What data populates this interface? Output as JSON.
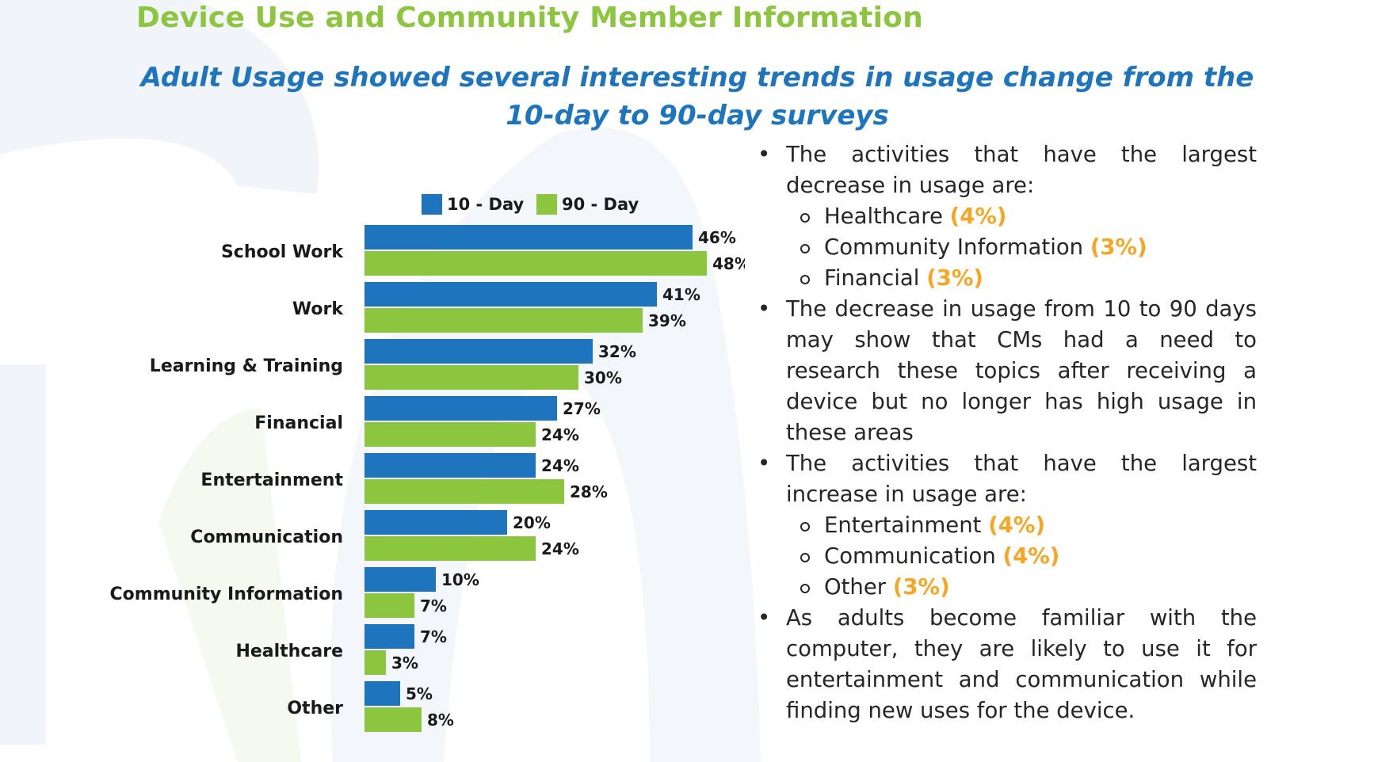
{
  "page": {
    "title": "Device Use and Community Member Information",
    "subtitle": "Adult Usage showed several interesting trends in usage change from the 10-day to 90-day surveys"
  },
  "colors": {
    "title_green": "#8cc63f",
    "subtitle_blue": "#1f75bd",
    "series_10_day": "#1f75bd",
    "series_90_day": "#8cc63f",
    "highlight_orange": "#f5a623"
  },
  "chart_data": {
    "type": "bar",
    "orientation": "horizontal",
    "categories": [
      "School Work",
      "Work",
      "Learning & Training",
      "Financial",
      "Entertainment",
      "Communication",
      "Community Information",
      "Healthcare",
      "Other"
    ],
    "series": [
      {
        "name": "10 - Day",
        "values": [
          46,
          41,
          32,
          27,
          24,
          20,
          10,
          7,
          5
        ]
      },
      {
        "name": "90 - Day",
        "values": [
          48,
          39,
          30,
          24,
          28,
          24,
          7,
          3,
          8
        ]
      }
    ],
    "value_suffix": "%",
    "xlim": [
      0,
      50
    ],
    "legend_position": "top",
    "grid": false
  },
  "bullets": [
    {
      "text": "The activities that have the largest decrease in usage are:",
      "subitems": [
        {
          "label": "Healthcare",
          "value": "(4%)"
        },
        {
          "label": "Community Information",
          "value": "(3%)"
        },
        {
          "label": "Financial",
          "value": "(3%)"
        }
      ]
    },
    {
      "text": "The decrease in usage from 10 to 90 days may show that CMs had a need to research these topics after receiving a device but no longer has high usage in these areas",
      "subitems": []
    },
    {
      "text": "The activities that have the largest increase in usage are:",
      "subitems": [
        {
          "label": "Entertainment",
          "value": "(4%)"
        },
        {
          "label": "Communication",
          "value": "(4%)"
        },
        {
          "label": "Other",
          "value": "(3%)"
        }
      ]
    },
    {
      "text": "As adults become familiar with the computer, they are likely to use it for entertainment and communication while finding new uses for the device.",
      "subitems": []
    }
  ]
}
